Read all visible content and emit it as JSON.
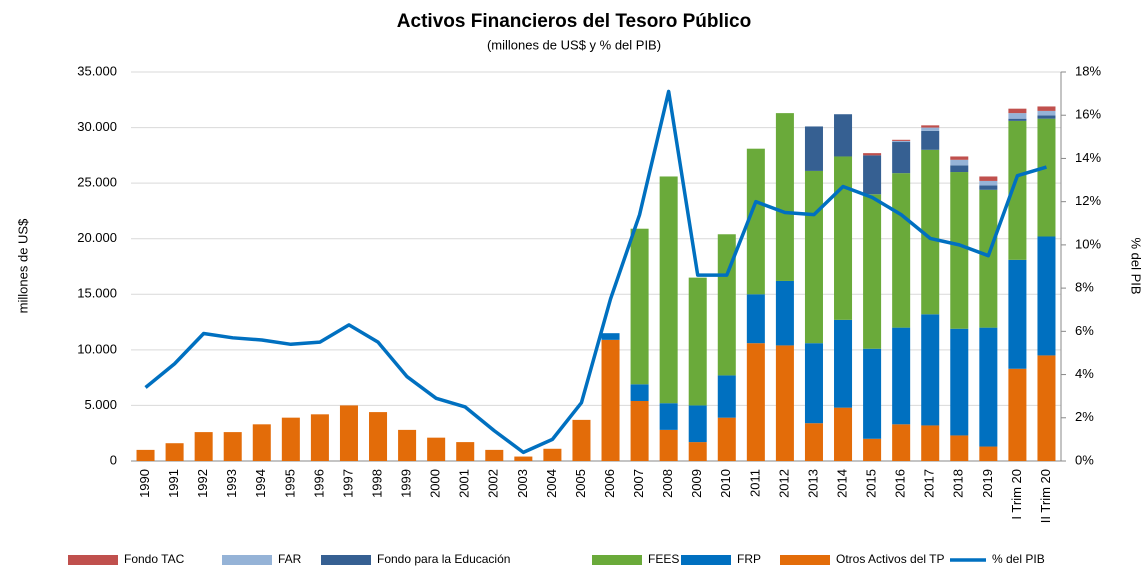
{
  "chart_data": {
    "type": "bar",
    "stacked": true,
    "title": "Activos Financieros del Tesoro Público",
    "subtitle": "(millones de US$ y % del PIB)",
    "y_label": "millones de US$",
    "y2_label": "% del PIB",
    "categories": [
      "1990",
      "1991",
      "1992",
      "1993",
      "1994",
      "1995",
      "1996",
      "1997",
      "1998",
      "1999",
      "2000",
      "2001",
      "2002",
      "2003",
      "2004",
      "2005",
      "2006",
      "2007",
      "2008",
      "2009",
      "2010",
      "2011",
      "2012",
      "2013",
      "2014",
      "2015",
      "2016",
      "2017",
      "2018",
      "2019",
      "I Trim 20",
      "II Trim 20"
    ],
    "series": [
      {
        "name": "Fondo TAC",
        "color": "#c0504d",
        "values": [
          0,
          0,
          0,
          0,
          0,
          0,
          0,
          0,
          0,
          0,
          0,
          0,
          0,
          0,
          0,
          0,
          0,
          0,
          0,
          0,
          0,
          0,
          0,
          0,
          0,
          200,
          100,
          200,
          300,
          400,
          400,
          400
        ]
      },
      {
        "name": "FAR",
        "color": "#95b3d7",
        "values": [
          0,
          0,
          0,
          0,
          0,
          0,
          0,
          0,
          0,
          0,
          0,
          0,
          0,
          0,
          0,
          0,
          0,
          0,
          0,
          0,
          0,
          0,
          0,
          0,
          0,
          0,
          100,
          300,
          500,
          400,
          500,
          400
        ]
      },
      {
        "name": "Fondo para la Educación",
        "color": "#366092",
        "values": [
          0,
          0,
          0,
          0,
          0,
          0,
          0,
          0,
          0,
          0,
          0,
          0,
          0,
          0,
          0,
          0,
          0,
          0,
          0,
          0,
          0,
          0,
          0,
          4000,
          3800,
          3500,
          2800,
          1700,
          600,
          400,
          200,
          300
        ]
      },
      {
        "name": "FEES",
        "color": "#6aaa3a",
        "values": [
          0,
          0,
          0,
          0,
          0,
          0,
          0,
          0,
          0,
          0,
          0,
          0,
          0,
          0,
          0,
          0,
          0,
          14000,
          20400,
          11500,
          12700,
          13100,
          15100,
          15500,
          14700,
          13900,
          13900,
          14800,
          14100,
          12400,
          12500,
          10600
        ]
      },
      {
        "name": "FRP",
        "color": "#0070c0",
        "values": [
          0,
          0,
          0,
          0,
          0,
          0,
          0,
          0,
          0,
          0,
          0,
          0,
          0,
          0,
          0,
          0,
          600,
          1500,
          2400,
          3300,
          3800,
          4400,
          5800,
          7200,
          7900,
          8100,
          8700,
          10000,
          9600,
          10700,
          9800,
          10700
        ]
      },
      {
        "name": "Otros Activos del TP",
        "color": "#e36c09",
        "values": [
          1000,
          1600,
          2600,
          2600,
          3300,
          3900,
          4200,
          5000,
          4400,
          2800,
          2100,
          1700,
          1000,
          400,
          1100,
          3700,
          10900,
          5400,
          2800,
          1700,
          3900,
          10600,
          10400,
          3400,
          4800,
          2000,
          3300,
          3200,
          2300,
          1300,
          8300,
          9500
        ]
      },
      {
        "name": "% del PIB",
        "color": "#0070c0",
        "type": "line",
        "axis": "y2",
        "values": [
          3.4,
          4.5,
          5.9,
          5.7,
          5.6,
          5.4,
          5.5,
          6.3,
          5.5,
          3.9,
          2.9,
          2.5,
          1.4,
          0.4,
          1.0,
          2.7,
          7.5,
          11.4,
          17.1,
          8.6,
          8.6,
          12.0,
          11.5,
          11.4,
          12.7,
          12.2,
          11.4,
          10.3,
          10.0,
          9.5,
          13.2,
          13.6
        ]
      }
    ],
    "ylim": [
      0,
      35000
    ],
    "yticks": [
      0,
      {
        "value": 5000,
        "label": "5.000"
      },
      {
        "value": 10000,
        "label": "10.000"
      },
      {
        "value": 15000,
        "label": "15.000"
      },
      {
        "value": 20000,
        "label": "20.000"
      },
      {
        "value": 25000,
        "label": "25.000"
      },
      {
        "value": 30000,
        "label": "30.000"
      },
      {
        "value": 35000,
        "label": "35.000"
      }
    ],
    "y2lim": [
      0,
      18
    ],
    "y2ticks": [
      {
        "value": 0,
        "label": "0%"
      },
      {
        "value": 2,
        "label": "2%"
      },
      {
        "value": 4,
        "label": "4%"
      },
      {
        "value": 6,
        "label": "6%"
      },
      {
        "value": 8,
        "label": "8%"
      },
      {
        "value": 10,
        "label": "10%"
      },
      {
        "value": 12,
        "label": "12%"
      },
      {
        "value": 14,
        "label": "14%"
      },
      {
        "value": 16,
        "label": "16%"
      },
      {
        "value": 18,
        "label": "18%"
      }
    ],
    "grid": true,
    "legend": "bottom"
  }
}
